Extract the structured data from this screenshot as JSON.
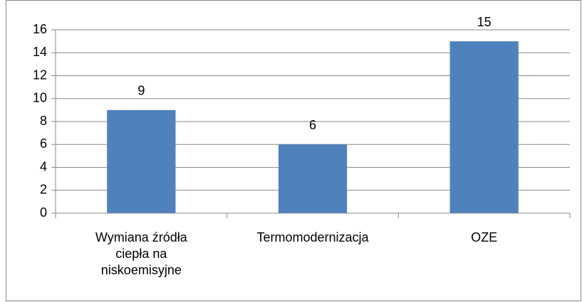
{
  "chart_data": {
    "type": "bar",
    "categories": [
      "Wymiana źródła ciepła na niskoemisyjne",
      "Termomodernizacja",
      "OZE"
    ],
    "values": [
      9,
      6,
      15
    ],
    "color": "#4f81bd",
    "ylim": [
      0,
      16
    ],
    "yticks": [
      0,
      2,
      4,
      6,
      8,
      10,
      12,
      14,
      16
    ],
    "grid": true
  }
}
